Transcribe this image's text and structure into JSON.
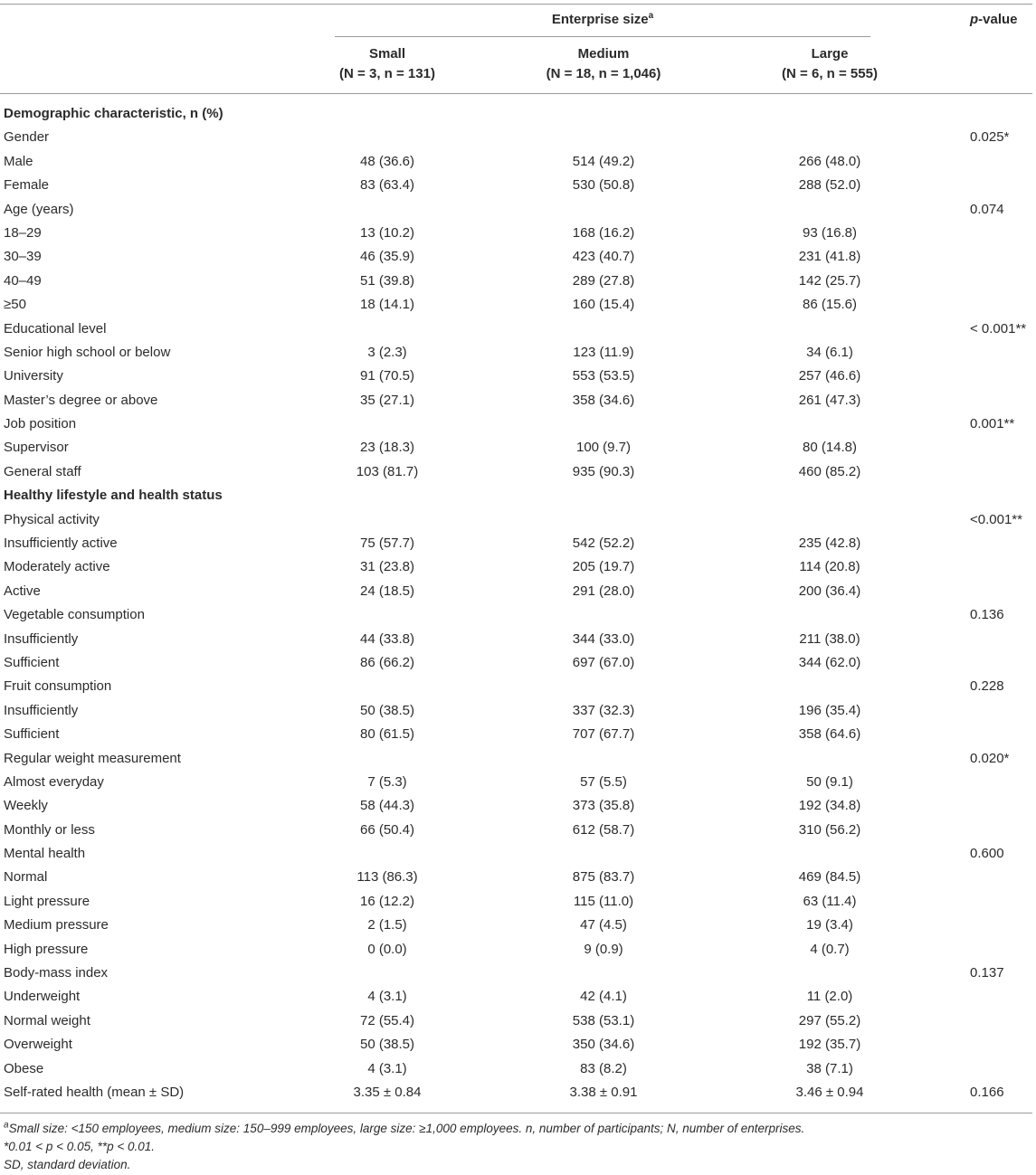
{
  "header": {
    "group": "Enterprise size",
    "group_note": "a",
    "p_italic": "p",
    "p_rest": "-value",
    "columns": [
      {
        "name": "Small",
        "sub": "(N = 3, n = 131)"
      },
      {
        "name": "Medium",
        "sub": "(N = 18, n = 1,046)"
      },
      {
        "name": "Large",
        "sub": "(N = 6, n = 555)"
      }
    ]
  },
  "rows": [
    {
      "section": "Demographic characteristic, n (%)"
    },
    {
      "label": "Gender",
      "p": "0.025*"
    },
    {
      "label": "Male",
      "cells": [
        "48 (36.6)",
        "514 (49.2)",
        "266 (48.0)"
      ]
    },
    {
      "label": "Female",
      "cells": [
        "83 (63.4)",
        "530 (50.8)",
        "288 (52.0)"
      ]
    },
    {
      "label": "Age (years)",
      "p": "0.074"
    },
    {
      "label": "18–29",
      "cells": [
        "13 (10.2)",
        "168 (16.2)",
        "93 (16.8)"
      ]
    },
    {
      "label": "30–39",
      "cells": [
        "46 (35.9)",
        "423 (40.7)",
        "231 (41.8)"
      ]
    },
    {
      "label": "40–49",
      "cells": [
        "51 (39.8)",
        "289 (27.8)",
        "142 (25.7)"
      ]
    },
    {
      "label": "≥50",
      "cells": [
        "18 (14.1)",
        "160 (15.4)",
        "86 (15.6)"
      ]
    },
    {
      "label": "Educational level",
      "p": "< 0.001**"
    },
    {
      "label": "Senior high school or below",
      "cells": [
        "3 (2.3)",
        "123 (11.9)",
        "34 (6.1)"
      ]
    },
    {
      "label": "University",
      "cells": [
        "91 (70.5)",
        "553 (53.5)",
        "257 (46.6)"
      ]
    },
    {
      "label": "Master’s degree or above",
      "cells": [
        "35 (27.1)",
        "358 (34.6)",
        "261 (47.3)"
      ]
    },
    {
      "label": "Job position",
      "p": "0.001**"
    },
    {
      "label": "Supervisor",
      "cells": [
        "23 (18.3)",
        "100 (9.7)",
        "80 (14.8)"
      ]
    },
    {
      "label": "General staff",
      "cells": [
        "103 (81.7)",
        "935 (90.3)",
        "460 (85.2)"
      ]
    },
    {
      "section": "Healthy lifestyle and health status"
    },
    {
      "label": "Physical activity",
      "p": "<0.001**"
    },
    {
      "label": "Insufficiently active",
      "cells": [
        "75 (57.7)",
        "542 (52.2)",
        "235 (42.8)"
      ]
    },
    {
      "label": "Moderately active",
      "cells": [
        "31 (23.8)",
        "205 (19.7)",
        "114 (20.8)"
      ]
    },
    {
      "label": "Active",
      "cells": [
        "24 (18.5)",
        "291 (28.0)",
        "200 (36.4)"
      ]
    },
    {
      "label": "Vegetable consumption",
      "p": "0.136"
    },
    {
      "label": "Insufficiently",
      "cells": [
        "44 (33.8)",
        "344 (33.0)",
        "211 (38.0)"
      ]
    },
    {
      "label": "Sufficient",
      "cells": [
        "86 (66.2)",
        "697 (67.0)",
        "344 (62.0)"
      ]
    },
    {
      "label": "Fruit consumption",
      "p": "0.228"
    },
    {
      "label": "Insufficiently",
      "cells": [
        "50 (38.5)",
        "337 (32.3)",
        "196 (35.4)"
      ]
    },
    {
      "label": "Sufficient",
      "cells": [
        "80 (61.5)",
        "707 (67.7)",
        "358 (64.6)"
      ]
    },
    {
      "label": "Regular weight measurement",
      "p": "0.020*"
    },
    {
      "label": "Almost everyday",
      "cells": [
        "7 (5.3)",
        "57 (5.5)",
        "50 (9.1)"
      ]
    },
    {
      "label": "Weekly",
      "cells": [
        "58 (44.3)",
        "373 (35.8)",
        "192 (34.8)"
      ]
    },
    {
      "label": "Monthly or less",
      "cells": [
        "66 (50.4)",
        "612 (58.7)",
        "310 (56.2)"
      ]
    },
    {
      "label": "Mental health",
      "p": "0.600"
    },
    {
      "label": "Normal",
      "cells": [
        "113 (86.3)",
        "875 (83.7)",
        "469 (84.5)"
      ]
    },
    {
      "label": "Light pressure",
      "cells": [
        "16 (12.2)",
        "115 (11.0)",
        "63 (11.4)"
      ]
    },
    {
      "label": "Medium pressure",
      "cells": [
        "2 (1.5)",
        "47 (4.5)",
        "19 (3.4)"
      ]
    },
    {
      "label": "High pressure",
      "cells": [
        "0 (0.0)",
        "9 (0.9)",
        "4 (0.7)"
      ]
    },
    {
      "label": "Body-mass index",
      "p": "0.137"
    },
    {
      "label": "Underweight",
      "cells": [
        "4 (3.1)",
        "42 (4.1)",
        "11 (2.0)"
      ]
    },
    {
      "label": "Normal weight",
      "cells": [
        "72 (55.4)",
        "538 (53.1)",
        "297 (55.2)"
      ]
    },
    {
      "label": "Overweight",
      "cells": [
        "50 (38.5)",
        "350 (34.6)",
        "192 (35.7)"
      ]
    },
    {
      "label": "Obese",
      "cells": [
        "4 (3.1)",
        "83 (8.2)",
        "38 (7.1)"
      ]
    },
    {
      "label": "Self-rated health (mean ± SD)",
      "cells": [
        "3.35 ± 0.84",
        "3.38 ± 0.91",
        "3.46 ± 0.94"
      ],
      "p": "0.166"
    }
  ],
  "footnotes": [
    {
      "mark": "a",
      "text": "Small size: <150 employees, medium size: 150–999 employees, large size: ≥1,000 employees. n, number of participants; N, number of enterprises."
    },
    {
      "text": "*0.01 < p < 0.05, **p < 0.01."
    },
    {
      "text": "SD, standard deviation."
    }
  ]
}
